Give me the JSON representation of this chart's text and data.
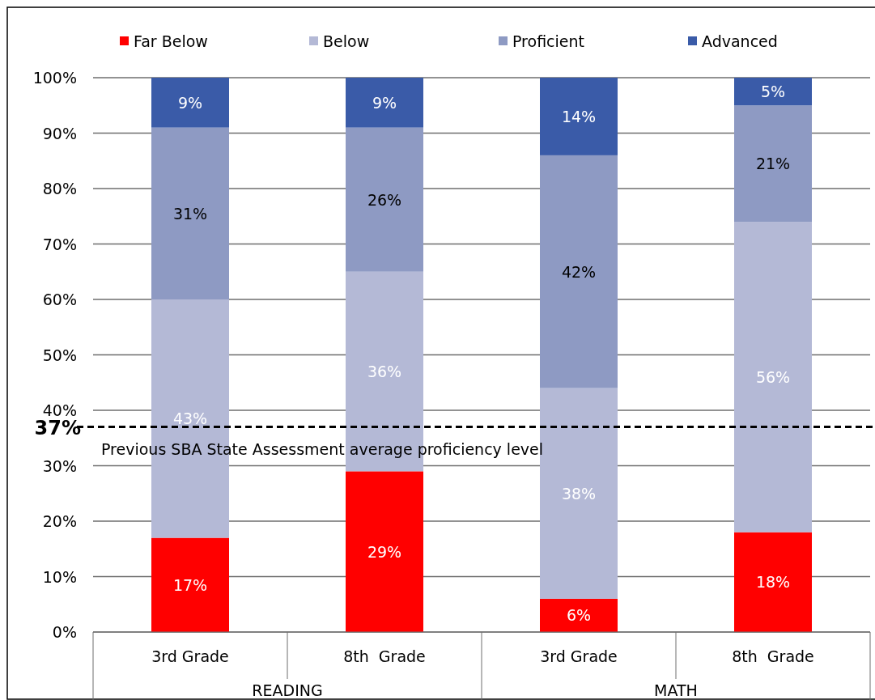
{
  "chart_data": {
    "type": "bar",
    "stacked": true,
    "categories": [
      "3rd Grade",
      "8th  Grade",
      "3rd Grade",
      "8th  Grade"
    ],
    "series": [
      {
        "name": "Far Below",
        "color": "#ff0000",
        "values": [
          17,
          29,
          6,
          18
        ],
        "value_labels": [
          "17%",
          "29%",
          "6%",
          "18%"
        ]
      },
      {
        "name": "Below",
        "color": "#b4b9d6",
        "values": [
          43,
          36,
          38,
          56
        ],
        "value_labels": [
          "43%",
          "36%",
          "38%",
          "56%"
        ]
      },
      {
        "name": "Proficient",
        "color": "#8e9ac3",
        "values": [
          31,
          26,
          42,
          21
        ],
        "value_labels": [
          "31%",
          "26%",
          "42%",
          "21%"
        ]
      },
      {
        "name": "Advanced",
        "color": "#3a5ba8",
        "values": [
          9,
          9,
          14,
          5
        ],
        "value_labels": [
          "9%",
          "9%",
          "14%",
          "5%"
        ]
      }
    ],
    "ylim": [
      0,
      100
    ],
    "yticks": [
      {
        "value": 0,
        "label": "0%"
      },
      {
        "value": 10,
        "label": "10%"
      },
      {
        "value": 20,
        "label": "20%"
      },
      {
        "value": 30,
        "label": "30%"
      },
      {
        "value": 40,
        "label": "40%"
      },
      {
        "value": 50,
        "label": "50%"
      },
      {
        "value": 60,
        "label": "60%"
      },
      {
        "value": 70,
        "label": "70%"
      },
      {
        "value": 80,
        "label": "80%"
      },
      {
        "value": 90,
        "label": "90%"
      },
      {
        "value": 100,
        "label": "100%"
      }
    ],
    "grid": "y",
    "legend": "top",
    "ref_lines": [
      {
        "axis": "y",
        "value": 37,
        "label": "37%",
        "line_style": "dashed",
        "color": "#000000"
      }
    ],
    "annotations": [
      "READING",
      "MATH",
      "Previous SBA State Assessment average proficiency level"
    ]
  }
}
